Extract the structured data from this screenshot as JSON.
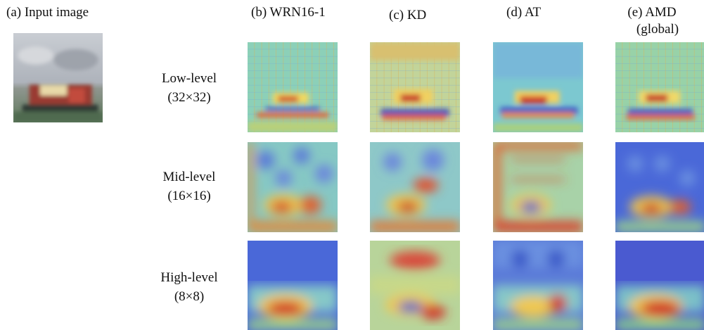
{
  "figure": {
    "input_title": "(a) Input image",
    "columns": [
      {
        "label": "(b) WRN16-1"
      },
      {
        "label": "(c) KD"
      },
      {
        "label": "(d) AT"
      },
      {
        "label": "(e) AMD",
        "label_line2": "(global)"
      }
    ],
    "rows": [
      {
        "label": "Low-level",
        "size": "(32×32)"
      },
      {
        "label": "Mid-level",
        "size": "(16×16)"
      },
      {
        "label": "High-level",
        "size": "(8×8)"
      }
    ]
  },
  "colors": {
    "sky_gray": "#b9bcc4",
    "road_green": "#6f8a6a",
    "truck_red": "#b8463c",
    "heat_blue": "#3b5bd6",
    "heat_cyan": "#6cc8d8",
    "heat_green": "#9ad08a",
    "heat_yellow": "#e6d86a",
    "heat_red": "#d8382c"
  }
}
